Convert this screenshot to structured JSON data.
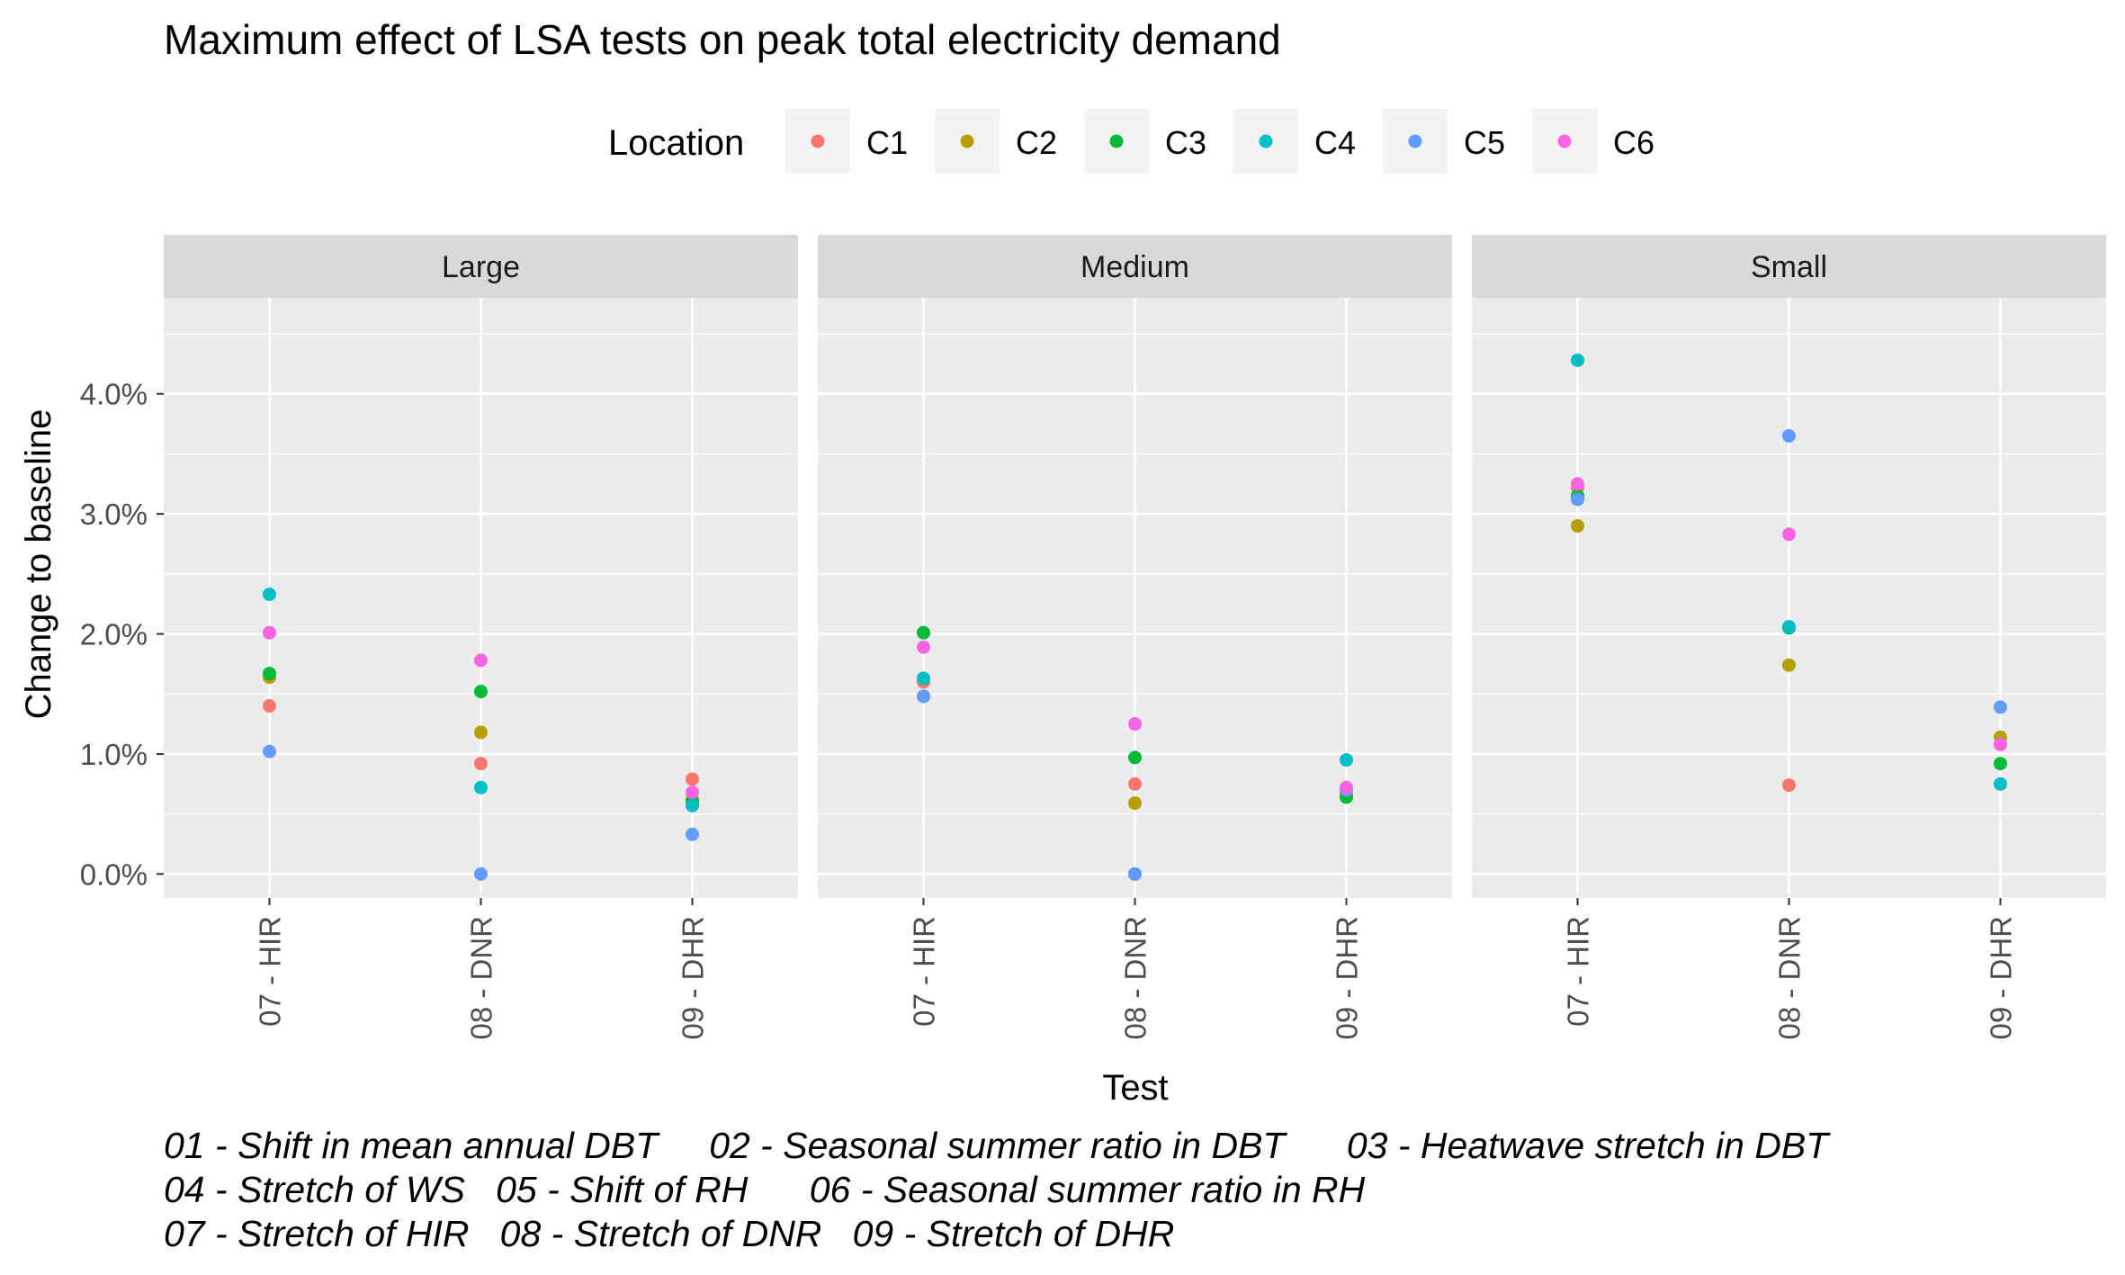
{
  "chart_data": {
    "type": "scatter",
    "title": "Maximum effect of LSA tests on peak total electricity demand",
    "xlabel": "Test",
    "ylabel": "Change to baseline",
    "legend": {
      "title": "Location",
      "placement": "top",
      "entries": [
        "C1",
        "C2",
        "C3",
        "C4",
        "C5",
        "C6"
      ],
      "colors": [
        "#F8766D",
        "#B79F00",
        "#00BA38",
        "#00BFC4",
        "#619CFF",
        "#F564E3"
      ]
    },
    "ylim": [
      -0.2,
      4.8
    ],
    "y_ticks": [
      0,
      1,
      2,
      3,
      4
    ],
    "y_tick_labels": [
      "0.0%",
      "1.0%",
      "2.0%",
      "3.0%",
      "4.0%"
    ],
    "categories": [
      "07 - HIR",
      "08 - DNR",
      "09 - DHR"
    ],
    "grid": true,
    "facets": [
      {
        "label": "Large",
        "series": [
          {
            "name": "C1",
            "values": [
              1.4,
              0.92,
              0.79
            ]
          },
          {
            "name": "C2",
            "values": [
              1.64,
              1.18,
              0.62
            ]
          },
          {
            "name": "C3",
            "values": [
              1.67,
              1.52,
              0.6
            ]
          },
          {
            "name": "C4",
            "values": [
              2.33,
              0.72,
              0.57
            ]
          },
          {
            "name": "C5",
            "values": [
              1.02,
              0.0,
              0.33
            ]
          },
          {
            "name": "C6",
            "values": [
              2.01,
              1.78,
              0.68
            ]
          }
        ]
      },
      {
        "label": "Medium",
        "series": [
          {
            "name": "C1",
            "values": [
              1.6,
              0.75,
              0.7
            ]
          },
          {
            "name": "C2",
            "values": [
              1.48,
              0.59,
              0.66
            ]
          },
          {
            "name": "C3",
            "values": [
              2.01,
              0.97,
              0.64
            ]
          },
          {
            "name": "C4",
            "values": [
              1.63,
              0.0,
              0.95
            ]
          },
          {
            "name": "C5",
            "values": [
              1.48,
              0.0,
              0.7
            ]
          },
          {
            "name": "C6",
            "values": [
              1.89,
              1.25,
              0.72
            ]
          }
        ]
      },
      {
        "label": "Small",
        "series": [
          {
            "name": "C1",
            "values": [
              3.22,
              0.74,
              1.08
            ]
          },
          {
            "name": "C2",
            "values": [
              2.9,
              1.74,
              1.14
            ]
          },
          {
            "name": "C3",
            "values": [
              3.15,
              2.05,
              0.92
            ]
          },
          {
            "name": "C4",
            "values": [
              4.28,
              2.06,
              0.75
            ]
          },
          {
            "name": "C5",
            "values": [
              3.12,
              3.65,
              1.39
            ]
          },
          {
            "name": "C6",
            "values": [
              3.25,
              2.83,
              1.08
            ]
          }
        ]
      }
    ],
    "caption_lines": [
      "01 - Shift in mean annual DBT     02 - Seasonal summer ratio in DBT      03 - Heatwave stretch in DBT",
      "04 - Stretch of WS   05 - Shift of RH      06 - Seasonal summer ratio in RH",
      "07 - Stretch of HIR   08 - Stretch of DNR   09 - Stretch of DHR"
    ]
  }
}
